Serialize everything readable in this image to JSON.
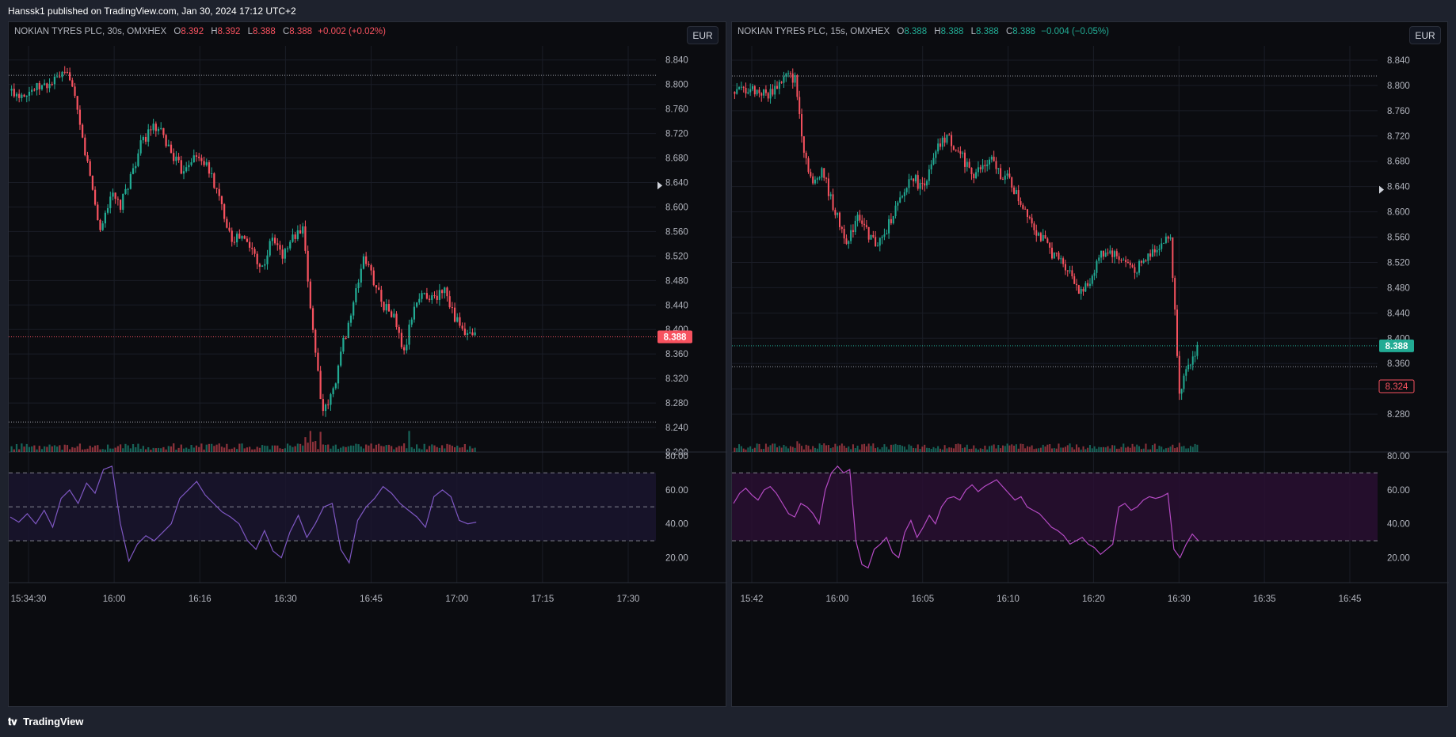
{
  "publish_bar": "Hanssk1 published on TradingView.com, Jan 30, 2024 17:12 UTC+2",
  "footer": {
    "brand": "TradingView",
    "icon": "tradingview-logo-icon"
  },
  "colors": {
    "up": "#22ab94",
    "down": "#f7525f",
    "rsi_left": "#7e57c2",
    "rsi_right": "#b54ac4"
  },
  "chart_data": [
    {
      "type": "candlestick",
      "legend": {
        "symbol": "NOKIAN TYRES PLC, 30s, OMXHEX",
        "o_label": "O",
        "o_value": "8.392",
        "h_label": "H",
        "h_value": "8.392",
        "l_label": "L",
        "l_value": "8.388",
        "c_label": "C",
        "c_value": "8.388",
        "change": "+0.002 (+0.02%)",
        "direction": "down"
      },
      "currency": "EUR",
      "price_axis": {
        "ticks": [
          "8.840",
          "8.800",
          "8.760",
          "8.720",
          "8.680",
          "8.640",
          "8.600",
          "8.560",
          "8.520",
          "8.480",
          "8.440",
          "8.400",
          "8.360",
          "8.320",
          "8.280",
          "8.240",
          "8.200"
        ],
        "range": [
          8.2,
          8.85
        ]
      },
      "last_price": {
        "label": "8.388",
        "value": 8.388,
        "color": "down"
      },
      "reference_lines": [
        8.815,
        8.249
      ],
      "time_axis": {
        "ticks": [
          "15:34:30",
          "16:00",
          "16:16",
          "16:30",
          "16:45",
          "17:00",
          "17:15",
          "17:30"
        ]
      },
      "price_path": [
        8.79,
        8.785,
        8.79,
        8.795,
        8.8,
        8.812,
        8.815,
        8.73,
        8.65,
        8.56,
        8.62,
        8.6,
        8.65,
        8.7,
        8.73,
        8.72,
        8.69,
        8.66,
        8.68,
        8.68,
        8.65,
        8.6,
        8.55,
        8.55,
        8.53,
        8.5,
        8.55,
        8.52,
        8.55,
        8.56,
        8.4,
        8.26,
        8.3,
        8.38,
        8.44,
        8.52,
        8.48,
        8.44,
        8.42,
        8.36,
        8.44,
        8.46,
        8.45,
        8.47,
        8.42,
        8.39,
        8.388
      ],
      "rsi": {
        "ticks": [
          "80.00",
          "60.00",
          "40.00",
          "20.00"
        ],
        "range": [
          10,
          80
        ],
        "bands": [
          70,
          50,
          30
        ],
        "values": [
          44,
          41,
          46,
          40,
          48,
          38,
          55,
          60,
          52,
          64,
          58,
          72,
          74,
          40,
          18,
          28,
          33,
          30,
          35,
          40,
          55,
          60,
          65,
          57,
          52,
          47,
          44,
          40,
          30,
          25,
          36,
          24,
          20,
          35,
          45,
          32,
          40,
          50,
          52,
          25,
          17,
          42,
          50,
          55,
          62,
          58,
          52,
          48,
          44,
          38,
          56,
          60,
          56,
          42,
          40,
          41
        ]
      }
    },
    {
      "type": "candlestick",
      "legend": {
        "symbol": "NOKIAN TYRES PLC, 15s, OMXHEX",
        "o_label": "O",
        "o_value": "8.388",
        "h_label": "H",
        "h_value": "8.388",
        "l_label": "L",
        "l_value": "8.388",
        "c_label": "C",
        "c_value": "8.388",
        "change": "−0.004 (−0.05%)",
        "direction": "up"
      },
      "currency": "EUR",
      "price_axis": {
        "ticks": [
          "8.840",
          "8.800",
          "8.760",
          "8.720",
          "8.680",
          "8.640",
          "8.600",
          "8.560",
          "8.520",
          "8.480",
          "8.440",
          "8.400",
          "8.360",
          "8.320",
          "8.280"
        ],
        "range": [
          8.22,
          8.85
        ]
      },
      "last_price": {
        "label": "8.388",
        "value": 8.388,
        "color": "up"
      },
      "secondary_price": {
        "label": "8.324",
        "value": 8.324
      },
      "reference_lines": [
        8.815,
        8.355
      ],
      "time_axis": {
        "ticks": [
          "15:42",
          "16:00",
          "16:05",
          "16:10",
          "16:20",
          "16:30",
          "16:35",
          "16:45"
        ]
      },
      "price_path": [
        8.79,
        8.792,
        8.795,
        8.79,
        8.785,
        8.8,
        8.815,
        8.81,
        8.7,
        8.64,
        8.67,
        8.62,
        8.58,
        8.55,
        8.6,
        8.57,
        8.55,
        8.56,
        8.6,
        8.62,
        8.66,
        8.64,
        8.66,
        8.7,
        8.72,
        8.7,
        8.68,
        8.66,
        8.67,
        8.68,
        8.66,
        8.65,
        8.62,
        8.6,
        8.57,
        8.55,
        8.53,
        8.52,
        8.5,
        8.47,
        8.49,
        8.53,
        8.54,
        8.53,
        8.52,
        8.51,
        8.52,
        8.54,
        8.55,
        8.56,
        8.32,
        8.35,
        8.388
      ],
      "rsi": {
        "ticks": [
          "80.00",
          "60.00",
          "40.00",
          "20.00"
        ],
        "range": [
          10,
          80
        ],
        "bands": [
          70,
          30
        ],
        "values": [
          52,
          58,
          61,
          57,
          54,
          60,
          62,
          58,
          52,
          46,
          44,
          52,
          50,
          46,
          40,
          60,
          70,
          74,
          70,
          72,
          30,
          16,
          14,
          25,
          28,
          32,
          23,
          20,
          35,
          42,
          32,
          38,
          45,
          40,
          50,
          55,
          56,
          54,
          60,
          63,
          59,
          62,
          64,
          66,
          62,
          58,
          54,
          56,
          50,
          48,
          46,
          42,
          38,
          36,
          33,
          28,
          30,
          32,
          28,
          26,
          22,
          25,
          28,
          50,
          52,
          48,
          50,
          54,
          56,
          55,
          56,
          58,
          25,
          20,
          28,
          34,
          30
        ]
      }
    }
  ]
}
